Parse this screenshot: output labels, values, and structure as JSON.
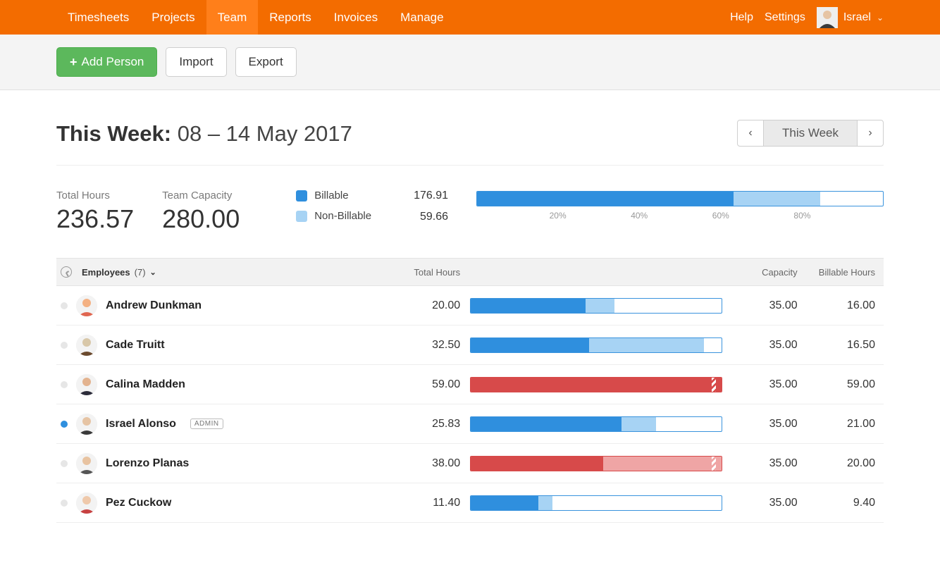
{
  "colors": {
    "nav_bg": "#f36c00",
    "nav_active_bg": "#ff7f1a",
    "green_btn": "#5cb85c",
    "billable": "#2f8fde",
    "non_billable": "#a7d3f4",
    "over_fill": "#d74a4a",
    "over_light": "#efa5a5",
    "bar_border_blue": "#3993dd",
    "bar_border_red": "#d74a4a",
    "grid": "#eeeeee"
  },
  "nav": {
    "items": [
      "Timesheets",
      "Projects",
      "Team",
      "Reports",
      "Invoices",
      "Manage"
    ],
    "active_index": 2,
    "help": "Help",
    "settings": "Settings",
    "user_name": "Israel"
  },
  "toolbar": {
    "add_label": "Add Person",
    "import_label": "Import",
    "export_label": "Export"
  },
  "week": {
    "prefix": "This Week:",
    "range_text": "08 – 14 May 2017",
    "selector_label": "This Week"
  },
  "summary": {
    "total_hours_label": "Total Hours",
    "total_hours_value": "236.57",
    "team_capacity_label": "Team Capacity",
    "team_capacity_value": "280.00",
    "legend_billable": "Billable",
    "legend_non_billable": "Non-Billable",
    "billable_value": "176.91",
    "non_billable_value": "59.66",
    "capacity_numeric": 280.0,
    "billable_numeric": 176.91,
    "non_billable_numeric": 59.66,
    "axis_ticks": [
      "20%",
      "40%",
      "60%",
      "80%"
    ]
  },
  "table": {
    "header_employees": "Employees",
    "employee_count_text": "(7)",
    "header_total": "Total Hours",
    "header_capacity": "Capacity",
    "header_billable": "Billable Hours",
    "rows": [
      {
        "name": "Andrew Dunkman",
        "total": "20.00",
        "capacity": "35.00",
        "capacity_num": 35,
        "billable": "16.00",
        "billable_num": 16.0,
        "non_billable_num": 4.0,
        "over": false,
        "active": false,
        "badge": null,
        "avatar_colors": [
          "#f4b183",
          "#e06650"
        ]
      },
      {
        "name": "Cade Truitt",
        "total": "32.50",
        "capacity": "35.00",
        "capacity_num": 35,
        "billable": "16.50",
        "billable_num": 16.5,
        "non_billable_num": 16.0,
        "over": false,
        "active": false,
        "badge": null,
        "avatar_colors": [
          "#d8c7a8",
          "#6b4a2d"
        ]
      },
      {
        "name": "Calina Madden",
        "total": "59.00",
        "capacity": "35.00",
        "capacity_num": 35,
        "billable": "59.00",
        "billable_num": 59.0,
        "non_billable_num": 0.0,
        "over": true,
        "active": false,
        "badge": null,
        "avatar_colors": [
          "#e3b38f",
          "#2c2c3a"
        ]
      },
      {
        "name": "Israel Alonso",
        "total": "25.83",
        "capacity": "35.00",
        "capacity_num": 35,
        "billable": "21.00",
        "billable_num": 21.0,
        "non_billable_num": 4.83,
        "over": false,
        "active": true,
        "badge": "ADMIN",
        "avatar_colors": [
          "#e6c4a4",
          "#3a3a3a"
        ]
      },
      {
        "name": "Lorenzo Planas",
        "total": "38.00",
        "capacity": "35.00",
        "capacity_num": 35,
        "billable": "20.00",
        "billable_num": 20.0,
        "non_billable_num": 18.0,
        "over": true,
        "active": false,
        "badge": null,
        "avatar_colors": [
          "#e8c3a1",
          "#555555"
        ]
      },
      {
        "name": "Pez Cuckow",
        "total": "11.40",
        "capacity": "35.00",
        "capacity_num": 35,
        "billable": "9.40",
        "billable_num": 9.4,
        "non_billable_num": 2.0,
        "over": false,
        "active": false,
        "badge": null,
        "avatar_colors": [
          "#efc9ab",
          "#c74141"
        ]
      }
    ]
  }
}
